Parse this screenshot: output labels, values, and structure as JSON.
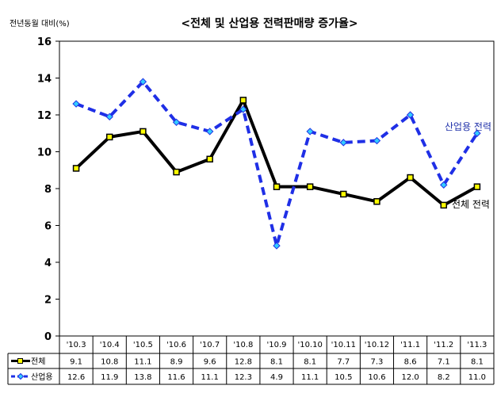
{
  "chart_data": {
    "type": "line",
    "title": "<전체 및 산업용 전력판매량 증가율>",
    "ylabel": "전년동월 대비(%)",
    "xlabel": "",
    "ylim": [
      0,
      16
    ],
    "yticks": [
      0,
      2,
      4,
      6,
      8,
      10,
      12,
      14,
      16
    ],
    "grid": "none",
    "categories": [
      "'10.3",
      "'10.4",
      "'10.5",
      "'10.6",
      "'10.7",
      "'10.8",
      "'10.9",
      "'10.10",
      "'10.11",
      "'10.12",
      "'11.1",
      "'11.2",
      "'11.3"
    ],
    "series": [
      {
        "name": "전체",
        "values": [
          9.1,
          10.8,
          11.1,
          8.9,
          9.6,
          12.8,
          8.1,
          8.1,
          7.7,
          7.3,
          8.6,
          7.1,
          8.1
        ],
        "labels": [
          "9.1",
          "10.8",
          "11.1",
          "8.9",
          "9.6",
          "12.8",
          "8.1",
          "8.1",
          "7.7",
          "7.3",
          "8.6",
          "7.1",
          "8.1"
        ],
        "line_color": "#000000",
        "marker_color": "#ffff00",
        "line_style": "solid",
        "annotation": "전체 전력"
      },
      {
        "name": "산업용",
        "values": [
          12.6,
          11.9,
          13.8,
          11.6,
          11.1,
          12.3,
          4.9,
          11.1,
          10.5,
          10.6,
          12.0,
          8.2,
          11.0
        ],
        "labels": [
          "12.6",
          "11.9",
          "13.8",
          "11.6",
          "11.1",
          "12.3",
          "4.9",
          "11.1",
          "10.5",
          "10.6",
          "12.0",
          "8.2",
          "11.0"
        ],
        "line_color": "#1f2fe6",
        "marker_color": "#33ccff",
        "line_style": "dashed",
        "annotation": "산업용 전력"
      }
    ]
  }
}
